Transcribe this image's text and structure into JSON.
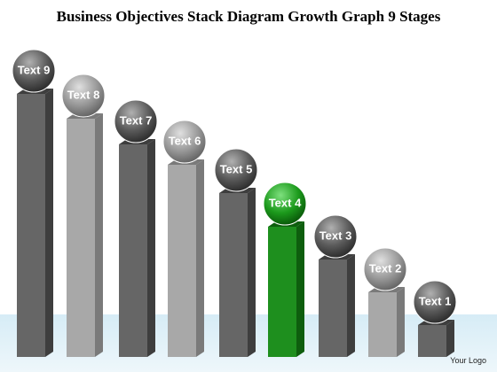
{
  "header": {
    "title": "Business Objectives Stack Diagram Growth Graph 9 Stages"
  },
  "nodes": [
    {
      "label": "Text 9"
    },
    {
      "label": "Text 8"
    },
    {
      "label": "Text 7"
    },
    {
      "label": "Text 6"
    },
    {
      "label": "Text 5"
    },
    {
      "label": "Text 4"
    },
    {
      "label": "Text 3"
    },
    {
      "label": "Text 2"
    },
    {
      "label": "Text 1"
    }
  ],
  "footer": {
    "logo": "Your Logo"
  }
}
